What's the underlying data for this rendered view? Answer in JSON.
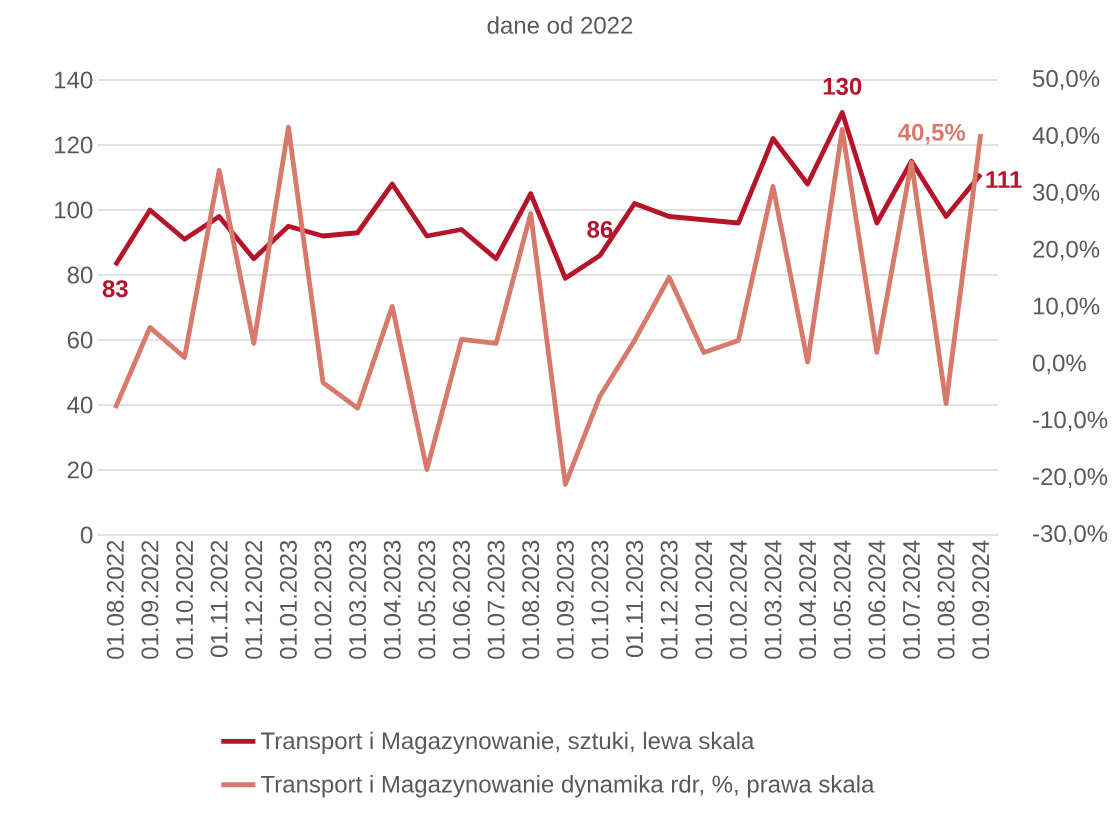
{
  "chart_data": {
    "type": "line",
    "title": "dane od 2022",
    "categories": [
      "01.08.2022",
      "01.09.2022",
      "01.10.2022",
      "01.11.2022",
      "01.12.2022",
      "01.01.2023",
      "01.02.2023",
      "01.03.2023",
      "01.04.2023",
      "01.05.2023",
      "01.06.2023",
      "01.07.2023",
      "01.08.2023",
      "01.09.2023",
      "01.10.2023",
      "01.11.2023",
      "01.12.2023",
      "01.01.2024",
      "01.02.2024",
      "01.03.2024",
      "01.04.2024",
      "01.05.2024",
      "01.06.2024",
      "01.07.2024",
      "01.08.2024",
      "01.09.2024"
    ],
    "series": [
      {
        "name": "Transport i Magazynowanie, sztuki, lewa skala",
        "color": "#b5152b",
        "values": [
          83,
          100,
          91,
          98,
          85,
          95,
          92,
          93,
          108,
          92,
          94,
          85,
          105,
          79,
          86,
          102,
          98,
          97,
          96,
          122,
          108,
          130,
          96,
          115,
          98,
          111
        ],
        "value_labels": [
          "83",
          null,
          null,
          null,
          null,
          null,
          null,
          null,
          null,
          null,
          null,
          null,
          null,
          null,
          "86",
          null,
          null,
          null,
          null,
          null,
          null,
          "130",
          null,
          null,
          null,
          "111"
        ]
      },
      {
        "name": "Transport i Magazynowanie dynamika rdr, %, prawa skala",
        "color": "#d7796b",
        "axis": "y2",
        "values": [
          -7.7,
          6.5,
          1.2,
          34.1,
          3.7,
          41.7,
          -3.2,
          -7.7,
          10.2,
          -18.5,
          4.4,
          3.7,
          26.5,
          -21.1,
          -5.6,
          4.2,
          15.3,
          2.1,
          4.2,
          31.3,
          0.4,
          41.3,
          2.1,
          35.5,
          -6.9,
          40.5
        ],
        "value_labels": [
          null,
          null,
          null,
          null,
          null,
          null,
          null,
          null,
          null,
          null,
          null,
          null,
          null,
          null,
          null,
          null,
          null,
          null,
          null,
          null,
          null,
          null,
          null,
          null,
          null,
          "40,5%"
        ]
      }
    ],
    "ylim": [
      0,
      140
    ],
    "yticks": [
      0,
      20,
      40,
      60,
      80,
      100,
      120,
      140
    ],
    "y2lim": [
      -30,
      50
    ],
    "y2ticks": [
      {
        "value": -30,
        "label": "-30,0%"
      },
      {
        "value": -20,
        "label": "-20,0%"
      },
      {
        "value": -10,
        "label": "-10,0%"
      },
      {
        "value": 0,
        "label": "0,0%"
      },
      {
        "value": 10,
        "label": "10,0%"
      },
      {
        "value": 20,
        "label": "20,0%"
      },
      {
        "value": 30,
        "label": "30,0%"
      },
      {
        "value": 40,
        "label": "40,0%"
      },
      {
        "value": 50,
        "label": "50,0%"
      }
    ],
    "grid": "y",
    "legend": "bottom",
    "line_style": "solid"
  }
}
